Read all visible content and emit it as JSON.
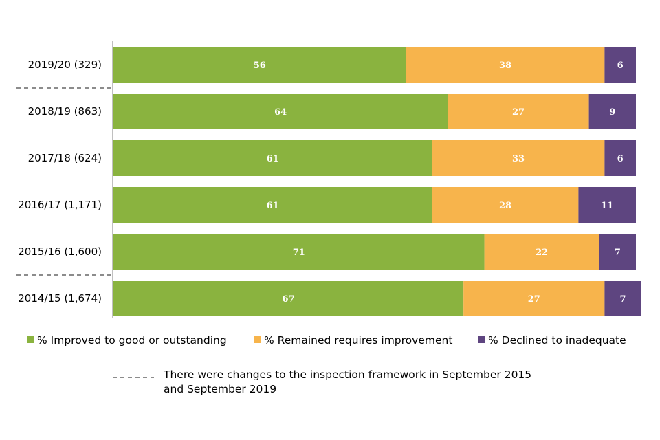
{
  "chart_data": {
    "type": "bar",
    "orientation": "horizontal",
    "stacked": true,
    "categories": [
      "2019/20 (329)",
      "2018/19 (863)",
      "2017/18 (624)",
      "2016/17 (1,171)",
      "2015/16 (1,600)",
      "2014/15 (1,674)"
    ],
    "series": [
      {
        "name": "% Improved to good or outstanding",
        "color": "#8ab33f",
        "values": [
          56,
          64,
          61,
          61,
          71,
          67
        ]
      },
      {
        "name": "% Remained requires improvement",
        "color": "#f7b44c",
        "values": [
          38,
          27,
          33,
          28,
          22,
          27
        ]
      },
      {
        "name": "% Declined to inadequate",
        "color": "#5e4580",
        "values": [
          6,
          9,
          6,
          11,
          7,
          7
        ]
      }
    ],
    "xlim": [
      0,
      100
    ],
    "grid": false,
    "legend_position": "bottom",
    "framework_change_lines_between": [
      [
        "2019/20 (329)",
        "2018/19 (863)"
      ],
      [
        "2015/16 (1,600)",
        "2014/15 (1,674)"
      ]
    ],
    "note": {
      "line1": "There were changes to the inspection framework in September 2015",
      "line2": "and September 2019",
      "line_color": "#8c8c8c"
    }
  }
}
